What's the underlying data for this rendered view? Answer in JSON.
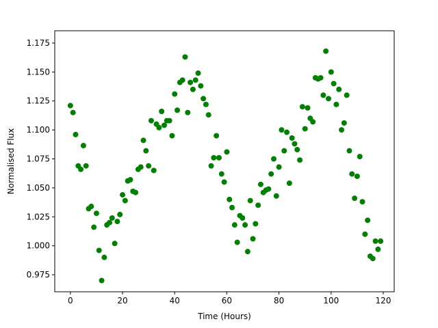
{
  "chart_data": {
    "type": "scatter",
    "xlabel": "Time (Hours)",
    "ylabel": "Normalised Flux",
    "color": "#008000",
    "x": [
      0,
      1,
      2,
      3,
      4,
      5,
      6,
      7,
      8,
      9,
      10,
      11,
      12,
      13,
      14,
      15,
      16,
      17,
      18,
      19,
      20,
      21,
      22,
      23,
      24,
      25,
      26,
      27,
      28,
      29,
      30,
      31,
      32,
      33,
      34,
      35,
      36,
      37,
      38,
      39,
      40,
      41,
      42,
      43,
      44,
      45,
      46,
      47,
      48,
      49,
      50,
      51,
      52,
      53,
      54,
      55,
      56,
      57,
      58,
      59,
      60,
      61,
      62,
      63,
      64,
      65,
      66,
      67,
      68,
      69,
      70,
      71,
      72,
      73,
      74,
      75,
      76,
      77,
      78,
      79,
      80,
      81,
      82,
      83,
      84,
      85,
      86,
      87,
      88,
      89,
      90,
      91,
      92,
      93,
      94,
      95,
      96,
      97,
      98,
      99,
      100,
      101,
      102,
      103,
      104,
      105,
      106,
      107,
      108,
      109,
      110,
      111,
      112,
      113,
      114,
      115,
      116,
      117,
      118,
      119
    ],
    "values": [
      1.121,
      1.115,
      1.096,
      1.069,
      1.066,
      1.0865,
      1.069,
      1.032,
      1.034,
      1.016,
      1.028,
      0.996,
      0.97,
      0.99,
      1.018,
      1.02,
      1.024,
      1.002,
      1.021,
      1.027,
      1.044,
      1.039,
      1.056,
      1.057,
      1.047,
      1.046,
      1.066,
      1.068,
      1.091,
      1.082,
      1.069,
      1.108,
      1.065,
      1.105,
      1.102,
      1.116,
      1.104,
      1.108,
      1.108,
      1.095,
      1.131,
      1.117,
      1.141,
      1.143,
      1.163,
      1.115,
      1.141,
      1.135,
      1.143,
      1.149,
      1.138,
      1.127,
      1.122,
      1.113,
      1.069,
      1.076,
      1.095,
      1.076,
      1.062,
      1.055,
      1.081,
      1.04,
      1.033,
      1.018,
      1.003,
      1.026,
      1.024,
      1.018,
      0.995,
      1.039,
      1.006,
      1.019,
      1.035,
      1.053,
      1.046,
      1.048,
      1.049,
      1.062,
      1.075,
      1.043,
      1.068,
      1.1,
      1.082,
      1.098,
      1.054,
      1.093,
      1.088,
      1.083,
      1.074,
      1.12,
      1.101,
      1.119,
      1.11,
      1.107,
      1.145,
      1.144,
      1.145,
      1.13,
      1.168,
      1.127,
      1.15,
      1.14,
      1.122,
      1.135,
      1.1,
      1.106,
      1.13,
      1.082,
      1.062,
      1.041,
      1.06,
      1.077,
      1.038,
      1.01,
      1.022,
      0.991,
      0.989,
      1.004,
      0.997,
      1.004
    ],
    "xlim": [
      -6,
      124.2
    ],
    "ylim": [
      0.9603,
      1.1856
    ],
    "xticks": [
      0,
      20,
      40,
      60,
      80,
      100,
      120
    ],
    "yticks": [
      0.975,
      {
        "value": 1.0,
        "label": "1.000"
      },
      1.025,
      {
        "value": 1.05,
        "label": "1.050"
      },
      1.075,
      {
        "value": 1.1,
        "label": "1.100"
      },
      1.125,
      {
        "value": 1.15,
        "label": "1.150"
      },
      1.175
    ]
  }
}
